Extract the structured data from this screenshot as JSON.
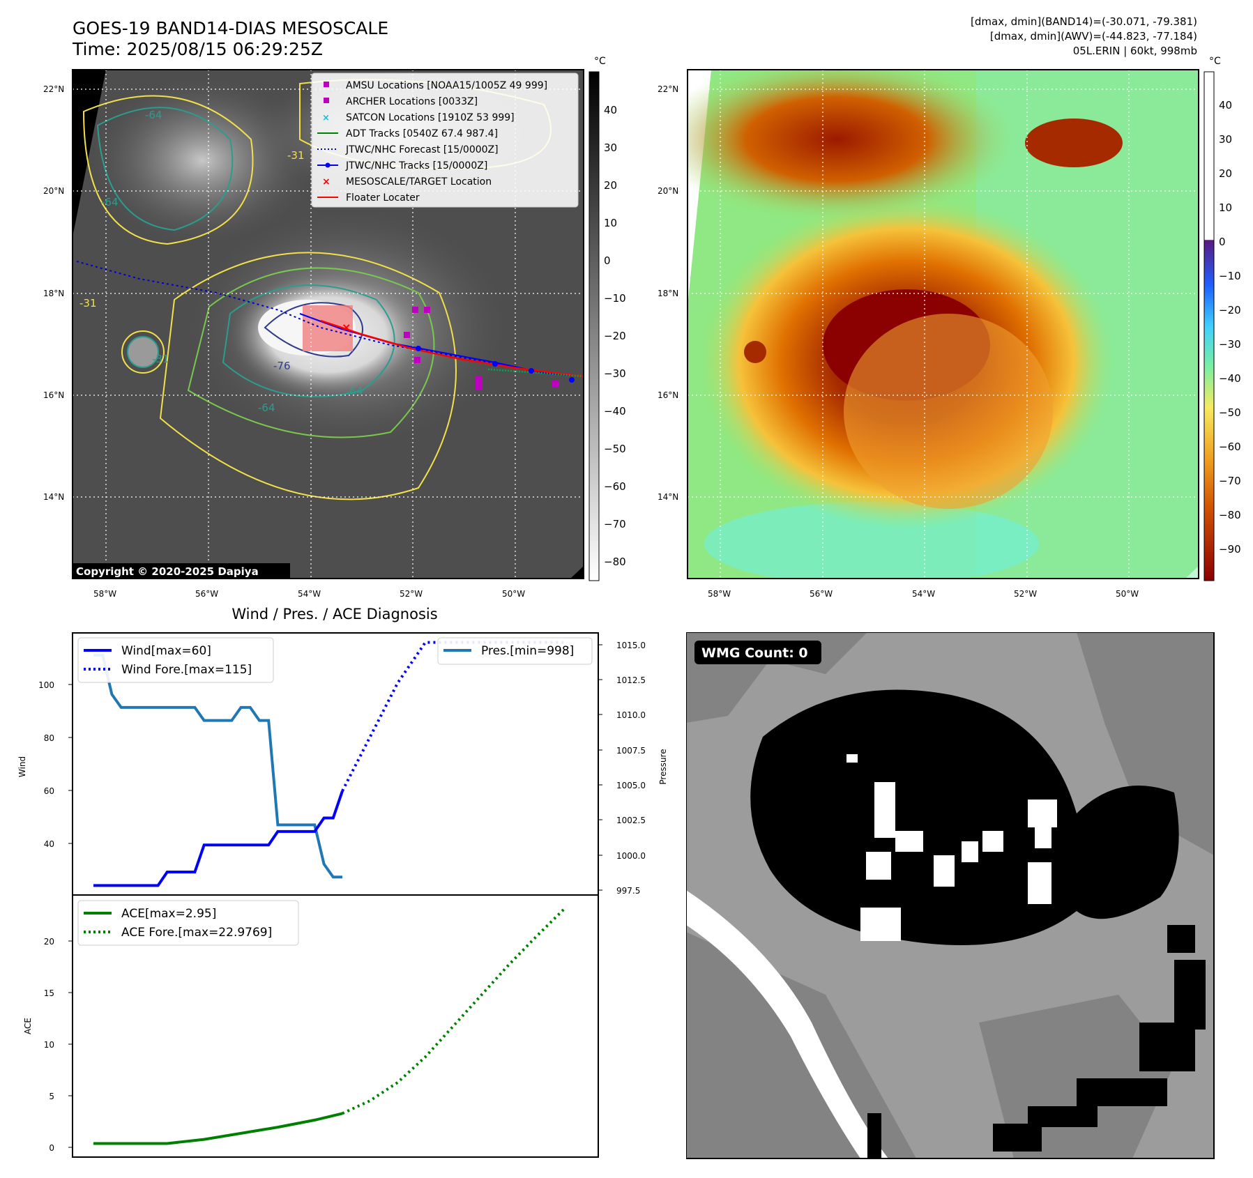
{
  "header": {
    "title_line1": "GOES-19 BAND14-DIAS MESOSCALE",
    "title_line2": "Time: 2025/08/15 06:29:25Z",
    "info_line1": "[dmax, dmin](BAND14)=(-30.071, -79.381)",
    "info_line2": "[dmax, dmin](AWV)=(-44.823, -77.184)",
    "info_line3": "05L.ERIN | 60kt, 998mb"
  },
  "maps": {
    "lat_labels": [
      "22°N",
      "20°N",
      "18°N",
      "16°N",
      "14°N"
    ],
    "lon_labels": [
      "58°W",
      "56°W",
      "54°W",
      "52°W",
      "50°W"
    ],
    "copyright": "Copyright © 2020-2025 Dapiya",
    "contour_labels": [
      "-76",
      "-64",
      "-64",
      "-31",
      "-31",
      "-31",
      "-64",
      "-64"
    ],
    "colorbar_unit": "°C",
    "gray_colorbar_ticks": [
      "40",
      "30",
      "20",
      "10",
      "0",
      "−10",
      "−20",
      "−30",
      "−40",
      "−50",
      "−60",
      "−70",
      "−80"
    ],
    "color_colorbar_ticks": [
      "40",
      "30",
      "20",
      "10",
      "0",
      "−10",
      "−20",
      "−30",
      "−40",
      "−50",
      "−60",
      "−70",
      "−80",
      "−90"
    ],
    "legend": [
      {
        "label": "AMSU Locations [NOAA15/1005Z 49 999]",
        "marker": "square",
        "color": "#c000c0"
      },
      {
        "label": "ARCHER Locations [0033Z]",
        "marker": "square",
        "color": "#c000c0"
      },
      {
        "label": "SATCON Locations [1910Z 53 999]",
        "marker": "x",
        "color": "#17becf"
      },
      {
        "label": "ADT Tracks [0540Z 67.4 987.4]",
        "marker": "line",
        "color": "#008000"
      },
      {
        "label": "JTWC/NHC Forecast [15/0000Z]",
        "marker": "dotted",
        "color": "#0000cc"
      },
      {
        "label": "JTWC/NHC Tracks [15/0000Z]",
        "marker": "line-dot",
        "color": "#0000ff"
      },
      {
        "label": "MESOSCALE/TARGET Location",
        "marker": "x",
        "color": "#ff0000"
      },
      {
        "label": "Floater Locater",
        "marker": "line",
        "color": "#ff0000"
      }
    ]
  },
  "diagnosis": {
    "title": "Wind / Pres. / ACE Diagnosis",
    "wind_ylabel": "Wind",
    "pressure_ylabel": "Pressure",
    "ace_ylabel": "ACE",
    "wind_ticks": [
      "100",
      "80",
      "60",
      "40"
    ],
    "pressure_ticks": [
      "1015.0",
      "1012.5",
      "1010.0",
      "1007.5",
      "1005.0",
      "1002.5",
      "1000.0",
      "997.5"
    ],
    "ace_ticks": [
      "20",
      "15",
      "10",
      "5",
      "0"
    ],
    "legend_wind": "Wind[max=60]",
    "legend_wind_fore": "Wind Fore.[max=115]",
    "legend_pres": "Pres.[min=998]",
    "legend_ace": "ACE[max=2.95]",
    "legend_ace_fore": "ACE Fore.[max=22.9769]"
  },
  "wmg": {
    "label": "WMG Count: 0"
  },
  "colors": {
    "wind": "#0000ff",
    "pressure": "#1f77b4",
    "ace": "#008000"
  },
  "chart_data": [
    {
      "type": "line",
      "title": "Wind / Pres. / ACE Diagnosis",
      "ylabel": "Wind",
      "ylim": [
        22,
        118
      ],
      "series": [
        {
          "name": "Wind[max=60]",
          "style": "solid",
          "x": [
            0,
            1,
            2,
            3,
            4,
            5,
            6,
            7,
            8,
            9,
            10,
            11,
            12,
            13,
            14,
            15,
            16,
            17,
            18,
            19,
            20,
            21,
            22,
            23,
            24,
            25,
            26,
            27
          ],
          "values": [
            25,
            25,
            25,
            25,
            25,
            25,
            25,
            25,
            30,
            30,
            30,
            30,
            40,
            40,
            40,
            40,
            40,
            40,
            40,
            40,
            45,
            45,
            45,
            45,
            45,
            50,
            50,
            60
          ]
        },
        {
          "name": "Wind Fore.[max=115]",
          "style": "dotted",
          "x": [
            27,
            30,
            33,
            36,
            39,
            42,
            45,
            48,
            51
          ],
          "values": [
            60,
            80,
            100,
            115,
            115,
            115,
            115,
            115,
            115
          ]
        }
      ]
    },
    {
      "type": "line",
      "ylabel": "Pressure",
      "ylim": [
        997,
        1015.8
      ],
      "series": [
        {
          "name": "Pres.[min=998]",
          "style": "solid",
          "x": [
            0,
            1,
            2,
            3,
            4,
            5,
            6,
            7,
            8,
            9,
            10,
            11,
            12,
            13,
            14,
            15,
            16,
            17,
            18,
            19,
            20,
            21,
            22,
            23,
            24,
            25,
            26,
            27
          ],
          "values": [
            1015,
            1015,
            1012,
            1011,
            1011,
            1011,
            1011,
            1011,
            1011,
            1011,
            1011,
            1011,
            1010,
            1010,
            1010,
            1010,
            1011,
            1011,
            1010,
            1010,
            1002,
            1002,
            1002,
            1002,
            1002,
            999,
            998,
            998
          ]
        }
      ]
    },
    {
      "type": "line",
      "ylabel": "ACE",
      "ylim": [
        -1.2,
        24
      ],
      "series": [
        {
          "name": "ACE[max=2.95]",
          "style": "solid",
          "x": [
            0,
            4,
            8,
            12,
            16,
            20,
            24,
            27
          ],
          "values": [
            0,
            0,
            0,
            0.4,
            1.0,
            1.6,
            2.3,
            2.95
          ]
        },
        {
          "name": "ACE Fore.[max=22.9769]",
          "style": "dotted",
          "x": [
            27,
            30,
            33,
            36,
            39,
            42,
            45,
            48,
            51
          ],
          "values": [
            2.95,
            4.2,
            6.0,
            8.5,
            11.5,
            14.5,
            17.5,
            20.3,
            22.98
          ]
        }
      ]
    }
  ]
}
